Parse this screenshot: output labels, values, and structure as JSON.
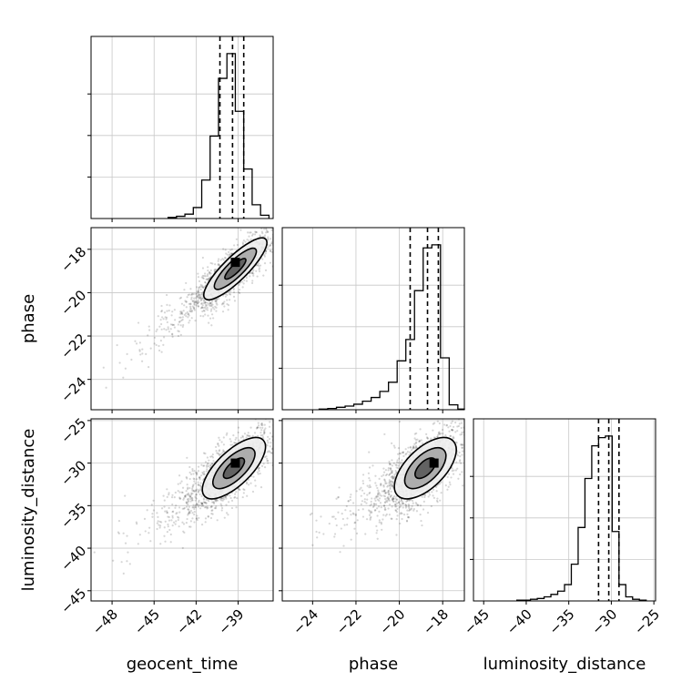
{
  "chart_data": {
    "type": "corner",
    "parameters": [
      "geocent_time",
      "phase",
      "luminosity_distance"
    ],
    "axis_labels": {
      "geocent_time": "geocent_time",
      "phase": "phase",
      "luminosity_distance": "luminosity_distance"
    },
    "ranges": {
      "geocent_time": [
        -49.5,
        -36.5
      ],
      "phase": [
        -25.4,
        -17.0
      ],
      "luminosity_distance": [
        -46.2,
        -24.8
      ]
    },
    "ticks": {
      "geocent_time": [
        -48,
        -45,
        -42,
        -39
      ],
      "phase": [
        -24,
        -22,
        -20,
        -18
      ],
      "luminosity_distance": [
        -45,
        -40,
        -35,
        -30,
        -25
      ]
    },
    "tick_labels": {
      "geocent_time": [
        "−48",
        "−45",
        "−42",
        "−39"
      ],
      "phase": [
        "−24",
        "−22",
        "−20",
        "−18"
      ],
      "luminosity_distance": [
        "−45",
        "−40",
        "−35",
        "−30",
        "−25"
      ]
    },
    "quantiles": {
      "geocent_time": [
        -40.3,
        -39.4,
        -38.6
      ],
      "phase": [
        -19.5,
        -18.7,
        -18.2
      ],
      "luminosity_distance": [
        -31.5,
        -30.3,
        -29.1
      ]
    },
    "histograms": {
      "geocent_time": {
        "edges": [
          -44,
          -43.4,
          -42.8,
          -42.2,
          -41.6,
          -41.0,
          -40.4,
          -39.8,
          -39.2,
          -38.6,
          -38.0,
          -37.4,
          -36.8
        ],
        "counts": [
          2,
          4,
          8,
          20,
          70,
          150,
          255,
          300,
          195,
          90,
          25,
          6
        ]
      },
      "phase": {
        "edges": [
          -23.7,
          -23.3,
          -22.9,
          -22.5,
          -22.1,
          -21.7,
          -21.3,
          -20.9,
          -20.5,
          -20.1,
          -19.7,
          -19.3,
          -18.9,
          -18.5,
          -18.1,
          -17.7,
          -17.3,
          -17.0
        ],
        "counts": [
          1,
          2,
          4,
          6,
          9,
          14,
          20,
          30,
          45,
          80,
          115,
          195,
          265,
          270,
          85,
          8,
          1
        ]
      },
      "luminosity_distance": {
        "edges": [
          -41.1,
          -40.3,
          -39.5,
          -38.7,
          -37.9,
          -37.1,
          -36.3,
          -35.5,
          -34.7,
          -33.9,
          -33.1,
          -32.3,
          -31.5,
          -30.7,
          -29.9,
          -29.1,
          -28.3,
          -27.5,
          -26.7,
          -25.9
        ],
        "counts": [
          1,
          1,
          2,
          3,
          5,
          8,
          12,
          20,
          45,
          90,
          150,
          190,
          200,
          202,
          85,
          20,
          5,
          2,
          1
        ]
      }
    },
    "pairs": [
      {
        "x": "geocent_time",
        "y": "phase",
        "center": [
          -39.2,
          -18.9
        ],
        "sigma": [
          1.5,
          0.95
        ],
        "rho": 0.85,
        "mode": [
          -39.2,
          -18.6
        ]
      },
      {
        "x": "geocent_time",
        "y": "luminosity_distance",
        "center": [
          -39.3,
          -30.6
        ],
        "sigma": [
          1.5,
          2.4
        ],
        "rho": 0.7,
        "mode": [
          -39.2,
          -30.0
        ]
      },
      {
        "x": "phase",
        "y": "luminosity_distance",
        "center": [
          -18.8,
          -30.6
        ],
        "sigma": [
          0.95,
          2.4
        ],
        "rho": 0.6,
        "mode": [
          -18.4,
          -30.0
        ]
      }
    ],
    "contour_levels": [
      0.5,
      1.0,
      1.5
    ],
    "grid": true
  }
}
